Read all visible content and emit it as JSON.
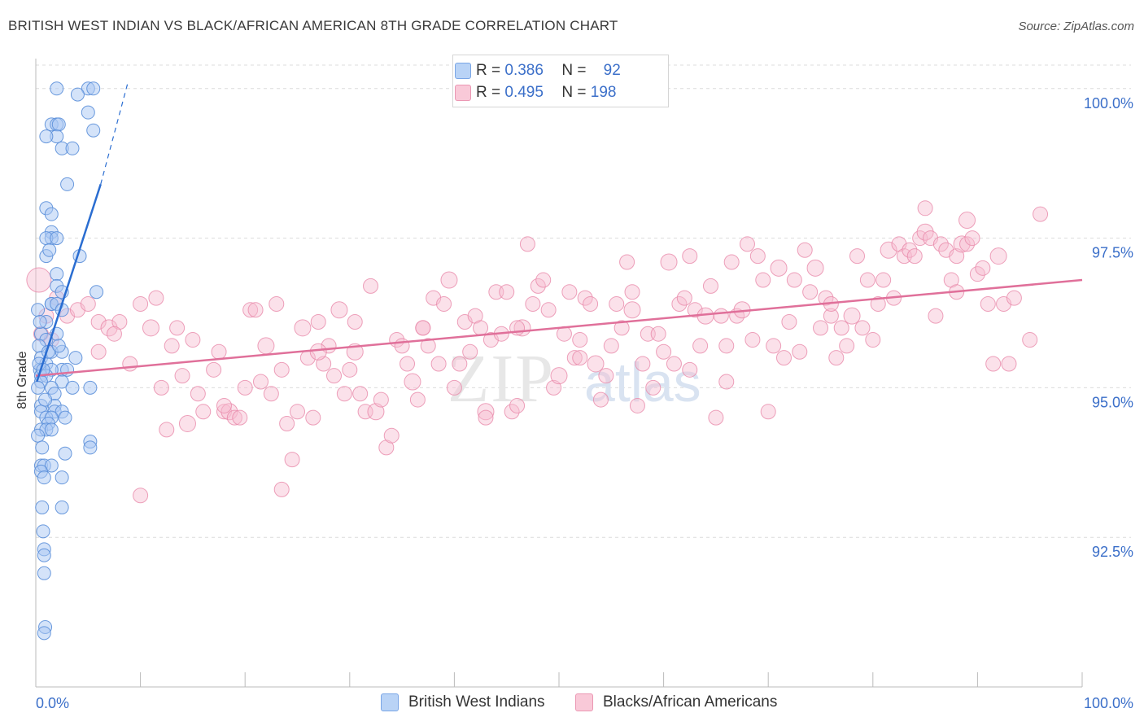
{
  "header": {
    "title": "BRITISH WEST INDIAN VS BLACK/AFRICAN AMERICAN 8TH GRADE CORRELATION CHART",
    "source": "Source: ZipAtlas.com"
  },
  "legend": {
    "series1": {
      "r_label": "R =",
      "r_value": "0.386",
      "n_label": "N =",
      "n_value": "92"
    },
    "series2": {
      "r_label": "R =",
      "r_value": "0.495",
      "n_label": "N =",
      "n_value": "198"
    }
  },
  "watermark": {
    "part1": "ZIP",
    "part2": "atlas"
  },
  "colors": {
    "blue_fill": "#a9c8f3",
    "blue_stroke": "#5b8fd9",
    "blue_line": "#2a6dd1",
    "pink_fill": "#f7bdd0",
    "pink_stroke": "#e98aaa",
    "pink_line": "#e0709a",
    "tick_label": "#3b6fc9",
    "grid": "#dcdcdc"
  },
  "chart_data": {
    "type": "scatter",
    "title": "BRITISH WEST INDIAN VS BLACK/AFRICAN AMERICAN 8TH GRADE CORRELATION CHART",
    "xlabel": "",
    "ylabel": "8th Grade",
    "xlim": [
      0,
      100
    ],
    "ylim": [
      90.0,
      100.5
    ],
    "x_tick_labels": [
      "0.0%",
      "100.0%"
    ],
    "y_ticks": [
      92.5,
      95.0,
      97.5,
      100.0
    ],
    "y_tick_labels": [
      "92.5%",
      "95.0%",
      "97.5%",
      "100.0%"
    ],
    "grid": true,
    "series": [
      {
        "name": "British West Indians",
        "color": "#5b8fd9",
        "r": 0.386,
        "n": 92,
        "trend": {
          "x": [
            0.1,
            6.2
          ],
          "y": [
            95.1,
            98.4
          ],
          "dash_to": [
            8.8,
            100.1
          ]
        },
        "points": [
          [
            2.0,
            100.0
          ],
          [
            5.0,
            100.0
          ],
          [
            5.5,
            100.0
          ],
          [
            4.0,
            99.9
          ],
          [
            1.5,
            99.4
          ],
          [
            2.0,
            99.4
          ],
          [
            2.2,
            99.4
          ],
          [
            5.0,
            99.6
          ],
          [
            5.5,
            99.3
          ],
          [
            2.0,
            99.2
          ],
          [
            1.0,
            99.2
          ],
          [
            2.5,
            99.0
          ],
          [
            3.5,
            99.0
          ],
          [
            3.0,
            98.4
          ],
          [
            1.0,
            98.0
          ],
          [
            1.5,
            97.9
          ],
          [
            1.5,
            97.6
          ],
          [
            1.5,
            97.5
          ],
          [
            1.0,
            97.5
          ],
          [
            2.0,
            97.5
          ],
          [
            1.0,
            97.2
          ],
          [
            4.2,
            97.2
          ],
          [
            2.0,
            96.9
          ],
          [
            2.0,
            96.7
          ],
          [
            2.5,
            96.6
          ],
          [
            5.8,
            96.6
          ],
          [
            1.5,
            96.4
          ],
          [
            1.5,
            96.4
          ],
          [
            2.0,
            96.4
          ],
          [
            2.5,
            96.3
          ],
          [
            0.2,
            96.3
          ],
          [
            1.0,
            96.1
          ],
          [
            0.5,
            95.9
          ],
          [
            2.0,
            95.9
          ],
          [
            1.0,
            95.8
          ],
          [
            0.3,
            95.7
          ],
          [
            1.5,
            95.6
          ],
          [
            2.5,
            95.6
          ],
          [
            0.5,
            95.5
          ],
          [
            1.0,
            95.4
          ],
          [
            2.5,
            95.3
          ],
          [
            3.0,
            95.3
          ],
          [
            0.4,
            95.3
          ],
          [
            1.5,
            95.3
          ],
          [
            0.5,
            95.2
          ],
          [
            1.0,
            95.2
          ],
          [
            0.5,
            95.1
          ],
          [
            2.5,
            95.1
          ],
          [
            0.2,
            95.0
          ],
          [
            1.5,
            95.0
          ],
          [
            3.5,
            95.0
          ],
          [
            5.2,
            95.0
          ],
          [
            1.8,
            94.9
          ],
          [
            0.5,
            94.7
          ],
          [
            1.8,
            94.7
          ],
          [
            0.5,
            94.6
          ],
          [
            1.8,
            94.6
          ],
          [
            2.5,
            94.6
          ],
          [
            1.0,
            94.5
          ],
          [
            1.5,
            94.5
          ],
          [
            1.2,
            94.4
          ],
          [
            0.5,
            94.3
          ],
          [
            1.0,
            94.3
          ],
          [
            1.5,
            94.3
          ],
          [
            0.2,
            94.2
          ],
          [
            5.2,
            94.1
          ],
          [
            5.2,
            94.0
          ],
          [
            2.8,
            93.9
          ],
          [
            0.5,
            93.7
          ],
          [
            0.8,
            93.7
          ],
          [
            1.5,
            93.7
          ],
          [
            0.5,
            93.6
          ],
          [
            0.8,
            93.5
          ],
          [
            2.5,
            93.5
          ],
          [
            0.6,
            93.0
          ],
          [
            2.5,
            93.0
          ],
          [
            0.7,
            92.6
          ],
          [
            0.8,
            92.3
          ],
          [
            0.8,
            92.2
          ],
          [
            0.8,
            91.9
          ],
          [
            0.9,
            91.0
          ],
          [
            0.8,
            90.9
          ],
          [
            0.3,
            95.4
          ],
          [
            0.6,
            94.0
          ],
          [
            1.2,
            95.6
          ],
          [
            2.8,
            94.5
          ],
          [
            0.4,
            96.1
          ],
          [
            1.3,
            97.3
          ],
          [
            3.8,
            95.5
          ],
          [
            0.9,
            94.8
          ],
          [
            2.2,
            95.7
          ],
          [
            0.7,
            95.3
          ]
        ]
      },
      {
        "name": "Blacks/African Americans",
        "color": "#e98aaa",
        "r": 0.495,
        "n": 198,
        "trend": {
          "x": [
            0.0,
            100.0
          ],
          "y": [
            95.2,
            96.8
          ]
        },
        "points": [
          [
            0.3,
            96.8
          ],
          [
            1.0,
            96.2
          ],
          [
            2.0,
            96.5
          ],
          [
            3.0,
            96.2
          ],
          [
            4.0,
            96.3
          ],
          [
            5.0,
            96.4
          ],
          [
            6.0,
            96.1
          ],
          [
            7.0,
            96.0
          ],
          [
            8.0,
            96.1
          ],
          [
            0.5,
            95.9
          ],
          [
            1.5,
            95.8
          ],
          [
            6.0,
            95.6
          ],
          [
            9.0,
            95.4
          ],
          [
            10.0,
            96.4
          ],
          [
            11.0,
            96.0
          ],
          [
            11.5,
            96.5
          ],
          [
            12.0,
            95.0
          ],
          [
            12.5,
            94.3
          ],
          [
            13.0,
            95.7
          ],
          [
            13.5,
            96.0
          ],
          [
            14.0,
            95.2
          ],
          [
            14.5,
            94.4
          ],
          [
            15.0,
            95.8
          ],
          [
            15.5,
            94.9
          ],
          [
            16.0,
            94.6
          ],
          [
            17.0,
            95.3
          ],
          [
            17.5,
            95.6
          ],
          [
            18.0,
            94.6
          ],
          [
            18.5,
            94.6
          ],
          [
            19.0,
            94.5
          ],
          [
            19.5,
            94.5
          ],
          [
            20.0,
            95.0
          ],
          [
            20.5,
            96.3
          ],
          [
            21.0,
            96.3
          ],
          [
            21.5,
            95.1
          ],
          [
            22.0,
            95.7
          ],
          [
            22.5,
            94.9
          ],
          [
            23.0,
            96.4
          ],
          [
            23.5,
            95.3
          ],
          [
            24.0,
            94.4
          ],
          [
            24.5,
            93.8
          ],
          [
            25.0,
            94.6
          ],
          [
            25.5,
            96.0
          ],
          [
            26.0,
            95.5
          ],
          [
            26.5,
            94.5
          ],
          [
            27.0,
            96.1
          ],
          [
            27.5,
            95.4
          ],
          [
            28.0,
            95.7
          ],
          [
            28.5,
            95.2
          ],
          [
            29.0,
            96.3
          ],
          [
            29.5,
            94.9
          ],
          [
            30.0,
            95.3
          ],
          [
            30.5,
            96.1
          ],
          [
            31.0,
            94.9
          ],
          [
            31.5,
            94.6
          ],
          [
            32.0,
            96.7
          ],
          [
            32.5,
            94.6
          ],
          [
            33.0,
            94.8
          ],
          [
            33.5,
            94.0
          ],
          [
            34.0,
            94.2
          ],
          [
            34.5,
            95.8
          ],
          [
            35.0,
            95.7
          ],
          [
            35.5,
            95.4
          ],
          [
            36.0,
            95.1
          ],
          [
            36.5,
            94.8
          ],
          [
            37.0,
            96.0
          ],
          [
            37.5,
            95.7
          ],
          [
            38.0,
            96.5
          ],
          [
            38.5,
            95.4
          ],
          [
            39.0,
            96.4
          ],
          [
            39.5,
            96.8
          ],
          [
            40.0,
            95.0
          ],
          [
            40.5,
            95.4
          ],
          [
            41.0,
            96.1
          ],
          [
            41.5,
            95.6
          ],
          [
            42.0,
            96.2
          ],
          [
            42.5,
            96.0
          ],
          [
            43.0,
            94.6
          ],
          [
            43.5,
            95.8
          ],
          [
            44.0,
            96.6
          ],
          [
            44.5,
            95.9
          ],
          [
            45.0,
            96.6
          ],
          [
            45.5,
            94.6
          ],
          [
            46.0,
            94.7
          ],
          [
            46.5,
            96.0
          ],
          [
            47.0,
            97.4
          ],
          [
            47.5,
            96.4
          ],
          [
            48.0,
            96.7
          ],
          [
            48.5,
            96.8
          ],
          [
            49.0,
            96.3
          ],
          [
            49.5,
            95.0
          ],
          [
            50.0,
            95.2
          ],
          [
            50.5,
            95.9
          ],
          [
            51.0,
            96.6
          ],
          [
            51.5,
            95.5
          ],
          [
            52.0,
            95.5
          ],
          [
            52.5,
            96.5
          ],
          [
            53.0,
            96.4
          ],
          [
            53.5,
            95.4
          ],
          [
            54.0,
            94.8
          ],
          [
            54.5,
            95.2
          ],
          [
            55.0,
            95.7
          ],
          [
            55.5,
            96.4
          ],
          [
            56.0,
            96.0
          ],
          [
            56.5,
            97.1
          ],
          [
            57.0,
            96.3
          ],
          [
            57.5,
            94.7
          ],
          [
            58.0,
            95.4
          ],
          [
            58.5,
            95.9
          ],
          [
            59.0,
            95.0
          ],
          [
            59.5,
            95.9
          ],
          [
            60.0,
            95.6
          ],
          [
            60.5,
            97.1
          ],
          [
            61.0,
            95.4
          ],
          [
            61.5,
            96.4
          ],
          [
            62.0,
            96.5
          ],
          [
            62.5,
            97.2
          ],
          [
            63.0,
            96.3
          ],
          [
            63.5,
            95.7
          ],
          [
            64.0,
            96.2
          ],
          [
            64.5,
            96.7
          ],
          [
            65.0,
            94.5
          ],
          [
            65.5,
            96.2
          ],
          [
            66.0,
            95.7
          ],
          [
            66.5,
            97.1
          ],
          [
            67.0,
            96.2
          ],
          [
            67.5,
            96.3
          ],
          [
            68.0,
            97.4
          ],
          [
            68.5,
            95.8
          ],
          [
            69.0,
            97.2
          ],
          [
            69.5,
            96.8
          ],
          [
            70.0,
            94.6
          ],
          [
            70.5,
            95.7
          ],
          [
            71.0,
            97.0
          ],
          [
            71.5,
            95.5
          ],
          [
            72.0,
            96.1
          ],
          [
            72.5,
            96.8
          ],
          [
            73.0,
            95.6
          ],
          [
            73.5,
            97.3
          ],
          [
            74.0,
            96.6
          ],
          [
            74.5,
            97.0
          ],
          [
            75.0,
            96.0
          ],
          [
            75.5,
            96.5
          ],
          [
            76.0,
            96.2
          ],
          [
            76.5,
            95.5
          ],
          [
            77.0,
            96.0
          ],
          [
            77.5,
            95.7
          ],
          [
            78.0,
            96.2
          ],
          [
            78.5,
            97.2
          ],
          [
            79.0,
            96.0
          ],
          [
            79.5,
            96.8
          ],
          [
            80.0,
            95.8
          ],
          [
            80.5,
            96.4
          ],
          [
            81.0,
            96.8
          ],
          [
            81.5,
            97.3
          ],
          [
            82.0,
            96.5
          ],
          [
            82.5,
            97.4
          ],
          [
            83.0,
            97.2
          ],
          [
            83.5,
            97.3
          ],
          [
            84.0,
            97.2
          ],
          [
            84.5,
            97.5
          ],
          [
            85.0,
            97.6
          ],
          [
            85.5,
            97.5
          ],
          [
            86.0,
            96.2
          ],
          [
            86.5,
            97.4
          ],
          [
            87.0,
            97.3
          ],
          [
            87.5,
            96.8
          ],
          [
            88.0,
            97.2
          ],
          [
            88.5,
            97.4
          ],
          [
            89.0,
            97.4
          ],
          [
            89.5,
            97.5
          ],
          [
            90.0,
            96.9
          ],
          [
            90.5,
            97.0
          ],
          [
            91.0,
            96.4
          ],
          [
            91.5,
            95.4
          ],
          [
            92.0,
            97.2
          ],
          [
            92.5,
            96.4
          ],
          [
            93.0,
            95.4
          ],
          [
            93.5,
            96.5
          ],
          [
            95.0,
            95.8
          ],
          [
            96.0,
            97.9
          ],
          [
            85.0,
            98.0
          ],
          [
            89.0,
            97.8
          ],
          [
            46.0,
            96.0
          ],
          [
            10.0,
            93.2
          ],
          [
            23.5,
            93.3
          ],
          [
            7.5,
            95.9
          ],
          [
            18.0,
            94.7
          ],
          [
            43.0,
            94.5
          ],
          [
            27.0,
            95.6
          ],
          [
            57.0,
            96.6
          ],
          [
            37.0,
            96.0
          ],
          [
            66.0,
            95.1
          ],
          [
            52.0,
            95.8
          ],
          [
            76.0,
            96.4
          ],
          [
            88.0,
            96.6
          ],
          [
            30.5,
            95.6
          ],
          [
            62.5,
            95.3
          ]
        ]
      }
    ]
  },
  "bottom_legend": {
    "item1": "British West Indians",
    "item2": "Blacks/African Americans"
  }
}
